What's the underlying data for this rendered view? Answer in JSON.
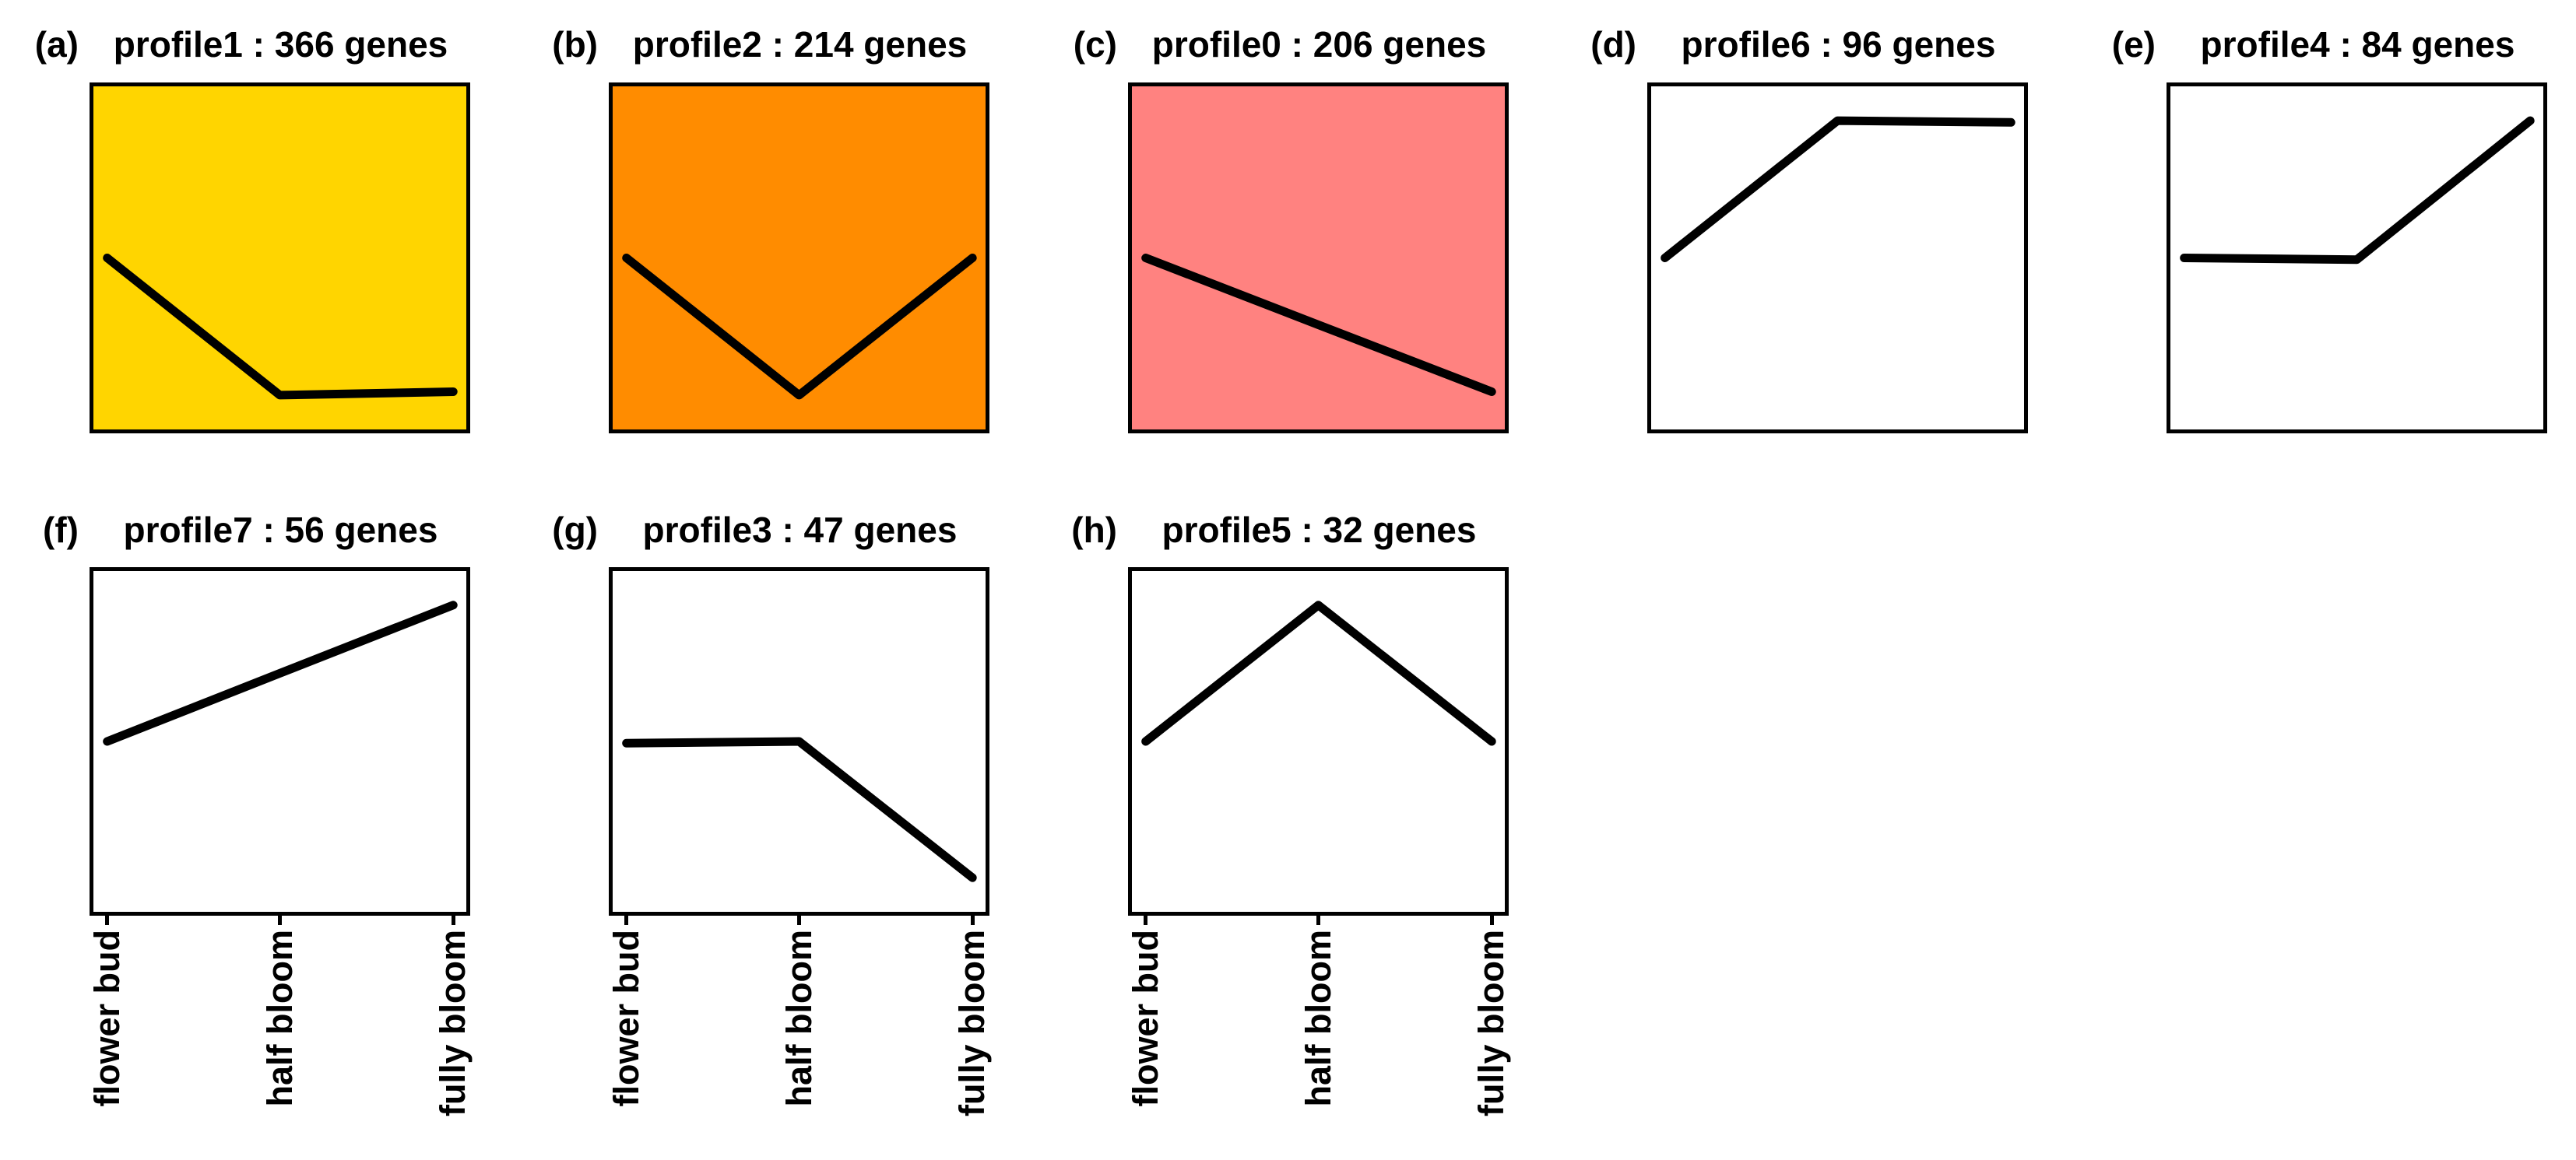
{
  "styles": {
    "background": "#FFFFFF",
    "line_color": "#000000",
    "panel_border_color": "#000000",
    "highlight_colors": {
      "profile1": "#FFD500",
      "profile2": "#FF8C00",
      "profile0": "#FF8280"
    }
  },
  "chart_data": [
    {
      "type": "line",
      "panel_label": "(a)",
      "title": "profile1 : 366 genes",
      "profile_name": "profile1",
      "gene_count": 366,
      "categories": [
        "flower bud",
        "half bloom",
        "fully bloom"
      ],
      "values": [
        0,
        -1,
        -1
      ],
      "norm_y": [
        0.5,
        0.9,
        0.89
      ],
      "background": "#FFD500",
      "row": 0,
      "col": 0,
      "show_x_labels": false
    },
    {
      "type": "line",
      "panel_label": "(b)",
      "title": "profile2 : 214 genes",
      "profile_name": "profile2",
      "gene_count": 214,
      "categories": [
        "flower bud",
        "half bloom",
        "fully bloom"
      ],
      "values": [
        0,
        -1,
        0
      ],
      "norm_y": [
        0.5,
        0.9,
        0.5
      ],
      "background": "#FF8C00",
      "row": 0,
      "col": 1,
      "show_x_labels": false
    },
    {
      "type": "line",
      "panel_label": "(c)",
      "title": "profile0 : 206 genes",
      "profile_name": "profile0",
      "gene_count": 206,
      "categories": [
        "flower bud",
        "half bloom",
        "fully bloom"
      ],
      "values": [
        0,
        -1,
        -2
      ],
      "norm_y": [
        0.5,
        0.695,
        0.89
      ],
      "background": "#FF8280",
      "row": 0,
      "col": 2,
      "show_x_labels": false
    },
    {
      "type": "line",
      "panel_label": "(d)",
      "title": "profile6 : 96 genes",
      "profile_name": "profile6",
      "gene_count": 96,
      "categories": [
        "flower bud",
        "half bloom",
        "fully bloom"
      ],
      "values": [
        0,
        1,
        1
      ],
      "norm_y": [
        0.5,
        0.1,
        0.105
      ],
      "background": "#FFFFFF",
      "row": 0,
      "col": 3,
      "show_x_labels": false
    },
    {
      "type": "line",
      "panel_label": "(e)",
      "title": "profile4 : 84 genes",
      "profile_name": "profile4",
      "gene_count": 84,
      "categories": [
        "flower bud",
        "half bloom",
        "fully bloom"
      ],
      "values": [
        0,
        0,
        1
      ],
      "norm_y": [
        0.5,
        0.505,
        0.1
      ],
      "background": "#FFFFFF",
      "row": 0,
      "col": 4,
      "show_x_labels": false
    },
    {
      "type": "line",
      "panel_label": "(f)",
      "title": "profile7 : 56 genes",
      "profile_name": "profile7",
      "gene_count": 56,
      "categories": [
        "flower bud",
        "half bloom",
        "fully bloom"
      ],
      "values": [
        0,
        1,
        2
      ],
      "norm_y": [
        0.5,
        0.3,
        0.1
      ],
      "background": "#FFFFFF",
      "row": 1,
      "col": 0,
      "show_x_labels": true
    },
    {
      "type": "line",
      "panel_label": "(g)",
      "title": "profile3 : 47 genes",
      "profile_name": "profile3",
      "gene_count": 47,
      "categories": [
        "flower bud",
        "half bloom",
        "fully bloom"
      ],
      "values": [
        0,
        0,
        -1
      ],
      "norm_y": [
        0.505,
        0.5,
        0.9
      ],
      "background": "#FFFFFF",
      "row": 1,
      "col": 1,
      "show_x_labels": true
    },
    {
      "type": "line",
      "panel_label": "(h)",
      "title": "profile5 : 32 genes",
      "profile_name": "profile5",
      "gene_count": 32,
      "categories": [
        "flower bud",
        "half bloom",
        "fully bloom"
      ],
      "values": [
        0,
        1,
        0
      ],
      "norm_y": [
        0.5,
        0.1,
        0.5
      ],
      "background": "#FFFFFF",
      "row": 1,
      "col": 2,
      "show_x_labels": true
    }
  ]
}
